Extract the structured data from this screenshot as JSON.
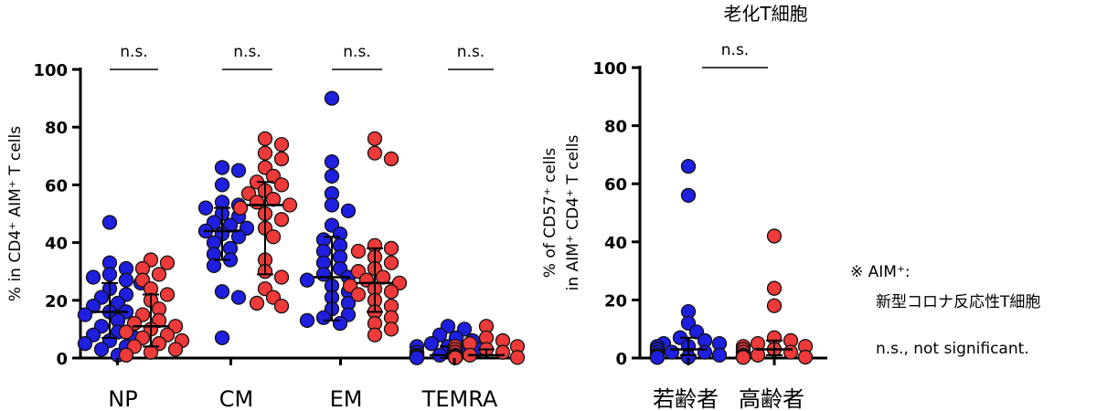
{
  "chart_data": [
    {
      "type": "scatter",
      "ylabel": "% in CD4⁺ AIM⁺ T cells",
      "ylim": [
        0,
        100
      ],
      "yticks": [
        "0",
        "20",
        "40",
        "60",
        "80",
        "100"
      ],
      "categories": [
        "NP",
        "CM",
        "EM",
        "TEMRA"
      ],
      "significance": [
        "n.s.",
        "n.s.",
        "n.s.",
        "n.s."
      ],
      "colors": {
        "young": "#1f1fe0",
        "old": "#ee3a3a"
      },
      "groups": [
        {
          "category": "NP",
          "color_key": "young",
          "median": 16,
          "q1": 7,
          "q3": 26,
          "values": [
            47,
            33,
            31,
            29,
            28,
            27,
            26,
            24,
            22,
            21,
            19,
            18,
            16,
            16,
            15,
            13,
            11,
            9,
            8,
            7,
            6,
            5,
            4,
            3,
            1
          ]
        },
        {
          "category": "NP",
          "color_key": "old",
          "median": 11,
          "q1": 4,
          "q3": 22,
          "values": [
            34,
            33,
            31,
            29,
            27,
            24,
            22,
            20,
            17,
            15,
            13,
            12,
            11,
            10,
            9,
            8,
            7,
            6,
            5,
            4,
            3,
            2,
            1
          ]
        },
        {
          "category": "CM",
          "color_key": "young",
          "median": 44,
          "q1": 34,
          "q3": 52,
          "values": [
            66,
            65,
            60,
            54,
            53,
            52,
            50,
            49,
            47,
            46,
            45,
            44,
            43,
            42,
            40,
            38,
            36,
            34,
            32,
            23,
            21,
            7
          ]
        },
        {
          "category": "CM",
          "color_key": "old",
          "median": 53,
          "q1": 29,
          "q3": 61,
          "values": [
            76,
            74,
            71,
            69,
            66,
            63,
            61,
            60,
            58,
            57,
            55,
            54,
            53,
            52,
            50,
            48,
            45,
            42,
            34,
            30,
            28,
            24,
            21,
            19,
            18
          ]
        },
        {
          "category": "EM",
          "color_key": "young",
          "median": 28,
          "q1": 13,
          "q3": 42,
          "values": [
            90,
            68,
            63,
            57,
            53,
            51,
            46,
            43,
            41,
            39,
            37,
            35,
            33,
            31,
            29,
            28,
            27,
            25,
            23,
            21,
            19,
            17,
            15,
            14,
            13,
            12
          ]
        },
        {
          "category": "EM",
          "color_key": "old",
          "median": 26,
          "q1": 16,
          "q3": 38,
          "values": [
            76,
            71,
            69,
            39,
            38,
            37,
            35,
            33,
            31,
            30,
            28,
            27,
            26,
            25,
            24,
            23,
            22,
            20,
            18,
            16,
            14,
            12,
            10,
            8
          ]
        },
        {
          "category": "TEMRA",
          "color_key": "young",
          "median": 1,
          "q1": 0,
          "q3": 4,
          "values": [
            11,
            10,
            8,
            7,
            6,
            5,
            4,
            4,
            3,
            3,
            2,
            2,
            2,
            1,
            1,
            1,
            1,
            0.5,
            0.5,
            0.5,
            0.2,
            0.2,
            0.1
          ]
        },
        {
          "category": "TEMRA",
          "color_key": "old",
          "median": 1,
          "q1": 0,
          "q3": 3,
          "values": [
            11,
            7,
            6,
            5,
            4,
            4,
            3,
            3,
            2,
            2,
            2,
            1,
            1,
            1,
            1,
            0.5,
            0.5,
            0.5,
            0.2,
            0.2,
            0.1
          ]
        }
      ]
    },
    {
      "type": "scatter",
      "title": "老化T細胞",
      "ylabel_line1": "% of CD57⁺ cells",
      "ylabel_line2": "in AIM⁺ CD4⁺ T cells",
      "ylim": [
        0,
        100
      ],
      "yticks": [
        "0",
        "20",
        "40",
        "60",
        "80",
        "100"
      ],
      "categories": [
        "若齢者",
        "高齢者"
      ],
      "significance": [
        "n.s."
      ],
      "groups": [
        {
          "category": "若齢者",
          "color": "#1f1fe0",
          "median": 3,
          "q1": 1,
          "q3": 7,
          "values": [
            66,
            56,
            16,
            12,
            9,
            7,
            6,
            5,
            5,
            4,
            4,
            3,
            3,
            3,
            2,
            2,
            2,
            1,
            1,
            1,
            0.5,
            0.5,
            0.3,
            0.2
          ]
        },
        {
          "category": "高齢者",
          "color": "#ee3a3a",
          "median": 3,
          "q1": 1,
          "q3": 6,
          "values": [
            42,
            24,
            18,
            7,
            6,
            5,
            4,
            4,
            3,
            3,
            3,
            2,
            2,
            2,
            1,
            1,
            1,
            0.5,
            0.5,
            0.3,
            0.2
          ]
        }
      ]
    }
  ],
  "notes": {
    "line1": "※  AIM⁺:",
    "line2": "新型コロナ反応性T細胞",
    "line3": "n.s., not significant."
  }
}
